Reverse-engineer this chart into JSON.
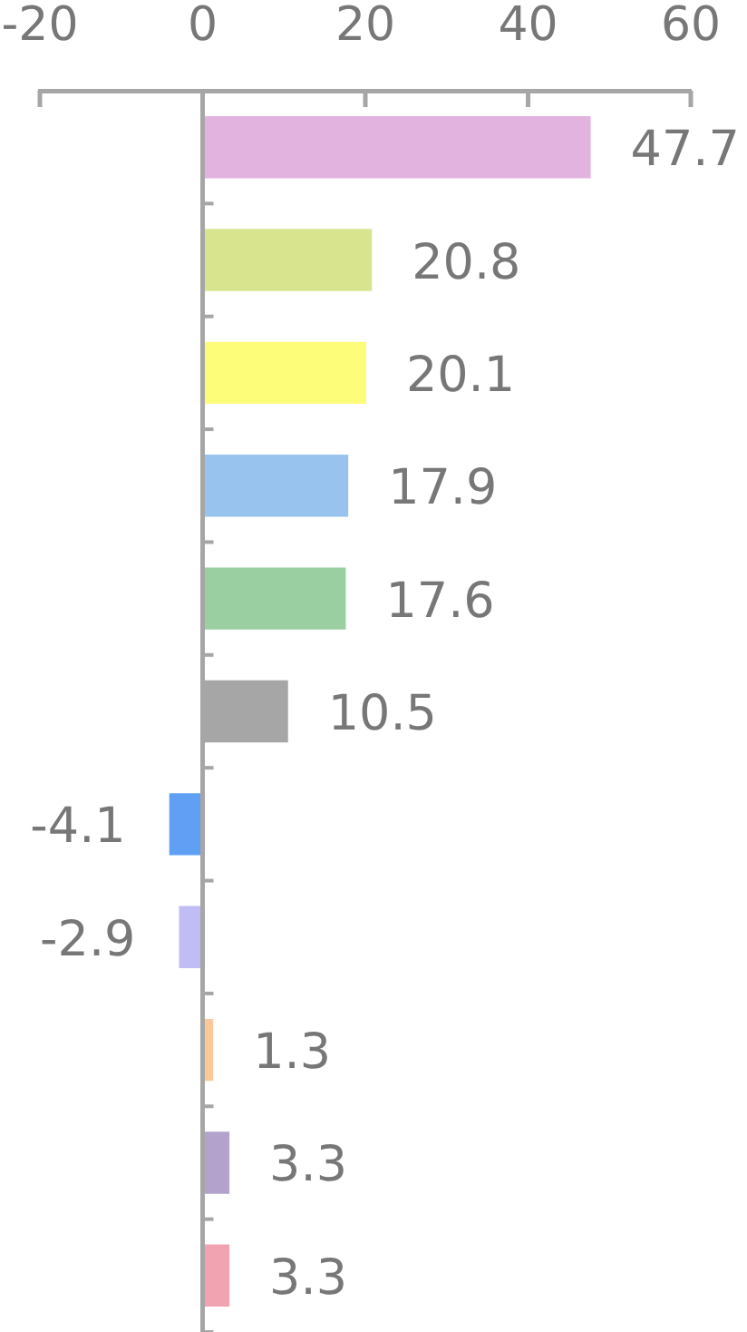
{
  "chart_data": {
    "type": "bar",
    "orientation": "horizontal",
    "categories": [
      null,
      null,
      null,
      null,
      null,
      null,
      null,
      null,
      null,
      null,
      null
    ],
    "values": [
      47.7,
      20.8,
      20.1,
      17.9,
      17.6,
      10.5,
      -4.1,
      -2.9,
      1.3,
      3.3,
      3.3
    ],
    "colors": [
      "#e2b3df",
      "#d8e48e",
      "#fdfd7a",
      "#97c3ee",
      "#9acfa2",
      "#a6a6a6",
      "#5fa0f5",
      "#bfbdf4",
      "#fbc89b",
      "#b3a2cb",
      "#f2a3b1"
    ],
    "xlim": [
      -20,
      60
    ],
    "xticks": [
      -20,
      0,
      20,
      40,
      60
    ],
    "data_labels": true
  }
}
